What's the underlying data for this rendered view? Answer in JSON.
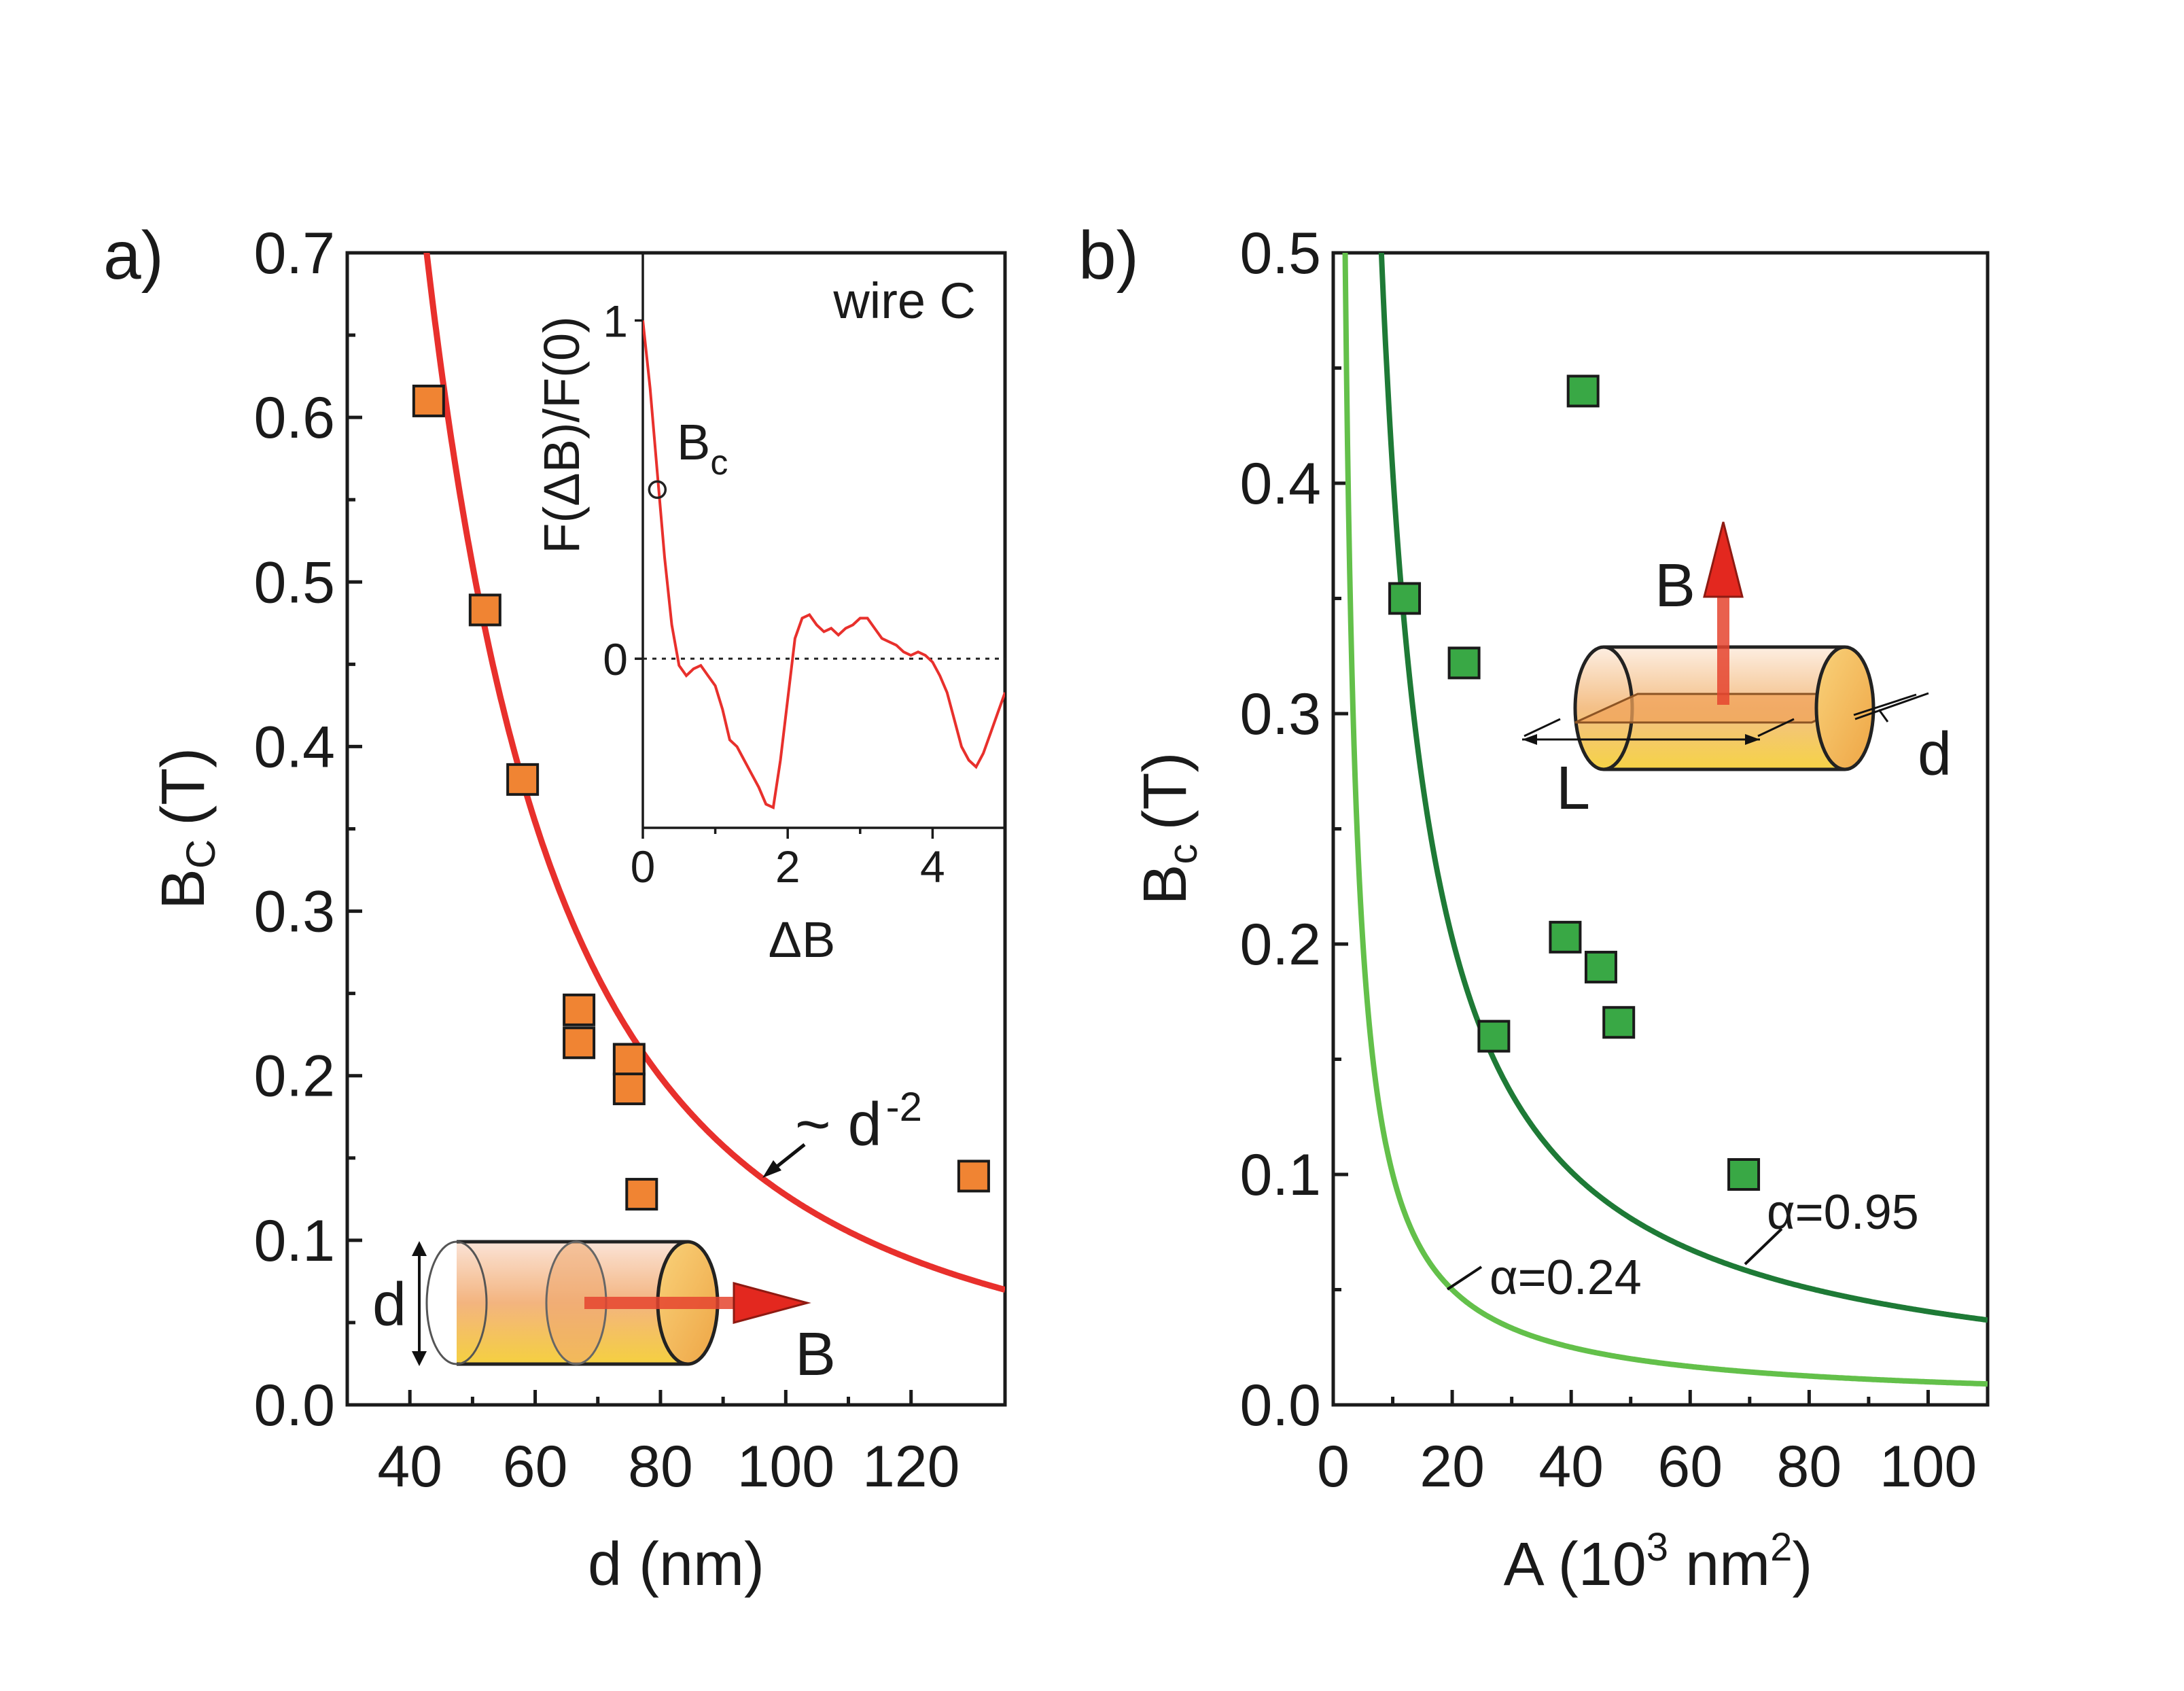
{
  "chart_data": [
    {
      "panel": "a)",
      "type": "scatter",
      "xlabel": "d (nm)",
      "ylabel_main": "B",
      "ylabel_sub": "C",
      "ylabel_unit": "(T)",
      "xlim": [
        30,
        135
      ],
      "ylim": [
        0,
        0.7
      ],
      "xticks": [
        40,
        60,
        80,
        100,
        120
      ],
      "yticks": [
        0.0,
        0.1,
        0.2,
        0.3,
        0.4,
        0.5,
        0.6,
        0.7
      ],
      "series": [
        {
          "name": "data",
          "kind": "markers",
          "color": "#f08433",
          "points": [
            [
              43,
              0.61
            ],
            [
              52,
              0.483
            ],
            [
              58,
              0.38
            ],
            [
              67,
              0.24
            ],
            [
              67,
              0.22
            ],
            [
              75,
              0.21
            ],
            [
              75,
              0.192
            ],
            [
              77,
              0.128
            ],
            [
              130,
              0.139
            ]
          ]
        },
        {
          "name": "fit",
          "kind": "curve",
          "color": "#e8302c",
          "formula": "1275/d^2",
          "coefficient": 1275,
          "exponent": -2
        }
      ],
      "annotation": {
        "prefix": "~ d",
        "sup": "-2"
      },
      "sketch_labels": {
        "diameter": "d",
        "field": "B"
      },
      "inset": {
        "title": "wire C",
        "xlabel": "ΔB",
        "ylabel": "F(ΔB)/F(0)",
        "xlim": [
          0,
          5
        ],
        "ylim": [
          -0.5,
          1.2
        ],
        "xticks": [
          0,
          2,
          4
        ],
        "yticks": [
          0,
          1
        ],
        "marker": {
          "x": 0.2,
          "y": 0.5,
          "label_main": "B",
          "label_sub": "c"
        },
        "curve": {
          "x": [
            0,
            0.1,
            0.2,
            0.3,
            0.4,
            0.5,
            0.6,
            0.7,
            0.8,
            0.9,
            1.0,
            1.1,
            1.2,
            1.3,
            1.4,
            1.5,
            1.6,
            1.7,
            1.8,
            1.9,
            2.0,
            2.1,
            2.2,
            2.3,
            2.4,
            2.5,
            2.6,
            2.7,
            2.8,
            2.9,
            3.0,
            3.1,
            3.2,
            3.3,
            3.4,
            3.5,
            3.6,
            3.7,
            3.8,
            3.9,
            4.0,
            4.1,
            4.2,
            4.3,
            4.4,
            4.5,
            4.6,
            4.7,
            4.8,
            4.9,
            5.0
          ],
          "y": [
            1.0,
            0.8,
            0.55,
            0.3,
            0.1,
            -0.02,
            -0.05,
            -0.03,
            -0.02,
            -0.05,
            -0.08,
            -0.15,
            -0.24,
            -0.26,
            -0.3,
            -0.34,
            -0.38,
            -0.43,
            -0.44,
            -0.3,
            -0.12,
            0.06,
            0.12,
            0.13,
            0.1,
            0.08,
            0.09,
            0.07,
            0.09,
            0.1,
            0.12,
            0.12,
            0.09,
            0.06,
            0.05,
            0.04,
            0.02,
            0.01,
            0.02,
            0.01,
            -0.01,
            -0.05,
            -0.1,
            -0.18,
            -0.26,
            -0.3,
            -0.32,
            -0.28,
            -0.22,
            -0.16,
            -0.1
          ]
        },
        "zero_line": 0
      }
    },
    {
      "panel": "b)",
      "type": "scatter",
      "xlabel_main": "A (10",
      "xlabel_sup1": "3",
      "xlabel_mid": " nm",
      "xlabel_sup2": "2",
      "xlabel_end": ")",
      "ylabel_main": "B",
      "ylabel_sub": "c",
      "ylabel_unit": "(T)",
      "xlim": [
        0,
        110
      ],
      "ylim": [
        0,
        0.5
      ],
      "xticks": [
        0,
        20,
        40,
        60,
        80,
        100
      ],
      "yticks": [
        0.0,
        0.1,
        0.2,
        0.3,
        0.4,
        0.5
      ],
      "series": [
        {
          "name": "data",
          "kind": "markers",
          "color": "#39a845",
          "points": [
            [
              42,
              0.44
            ],
            [
              12,
              0.35
            ],
            [
              22,
              0.322
            ],
            [
              27,
              0.16
            ],
            [
              39,
              0.203
            ],
            [
              45,
              0.19
            ],
            [
              48,
              0.166
            ],
            [
              69,
              0.1
            ]
          ]
        },
        {
          "name": "α=0.95",
          "kind": "curve",
          "color": "#1e7a36",
          "formula": "4.05/A",
          "coefficient": 4.05
        },
        {
          "name": "α=0.24",
          "kind": "curve",
          "color": "#63c04a",
          "formula": "1.0/A",
          "coefficient": 1.0
        }
      ],
      "annotations": [
        "α=0.95",
        "α=0.24"
      ],
      "sketch_labels": {
        "field": "B",
        "length": "L",
        "diameter": "d"
      }
    }
  ],
  "colors": {
    "orange_marker": "#f08433",
    "red_curve": "#e8302c",
    "green_marker": "#39a845",
    "dark_green_curve": "#1e7a36",
    "light_green_curve": "#63c04a",
    "arrow_red": "#e3281f"
  }
}
